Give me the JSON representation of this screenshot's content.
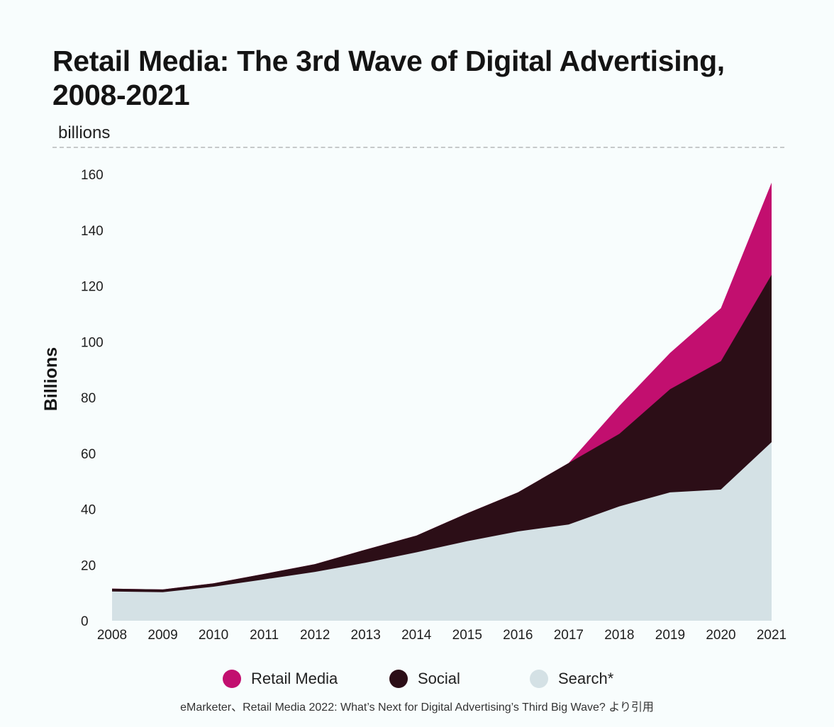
{
  "chart_data": {
    "type": "area",
    "stacked": true,
    "title": "Retail Media: The 3rd Wave of Digital Advertising, 2008-2021",
    "subtitle": "billions",
    "ylabel": "Billions",
    "xlabel": "",
    "ylim": [
      0,
      160
    ],
    "yticks": [
      0,
      20,
      40,
      60,
      80,
      100,
      120,
      140,
      160
    ],
    "x": [
      "2008",
      "2009",
      "2010",
      "2011",
      "2012",
      "2013",
      "2014",
      "2015",
      "2016",
      "2017",
      "2018",
      "2019",
      "2020",
      "2021"
    ],
    "grid": false,
    "legend_position": "bottom",
    "series": [
      {
        "name": "Search*",
        "color": "#d4e1e5",
        "values": [
          10.5,
          10.2,
          12.2,
          14.8,
          17.5,
          20.8,
          24.5,
          28.5,
          32,
          34.5,
          41,
          46,
          47,
          64
        ]
      },
      {
        "name": "Social",
        "color": "#2c0e17",
        "values": [
          1,
          1,
          1.2,
          2,
          2.8,
          4.7,
          6,
          10,
          14,
          22,
          26,
          37,
          46,
          60
        ]
      },
      {
        "name": "Retail Media",
        "color": "#c20f6f",
        "values": [
          0,
          0,
          0,
          0,
          0,
          0,
          0,
          0,
          0,
          0,
          10,
          13,
          19,
          33
        ]
      }
    ]
  },
  "legend_order": [
    "Retail Media",
    "Social",
    "Search*"
  ],
  "caption": "eMarketer、Retail Media 2022: What’s Next for Digital Advertising’s Third Big Wave? より引用"
}
